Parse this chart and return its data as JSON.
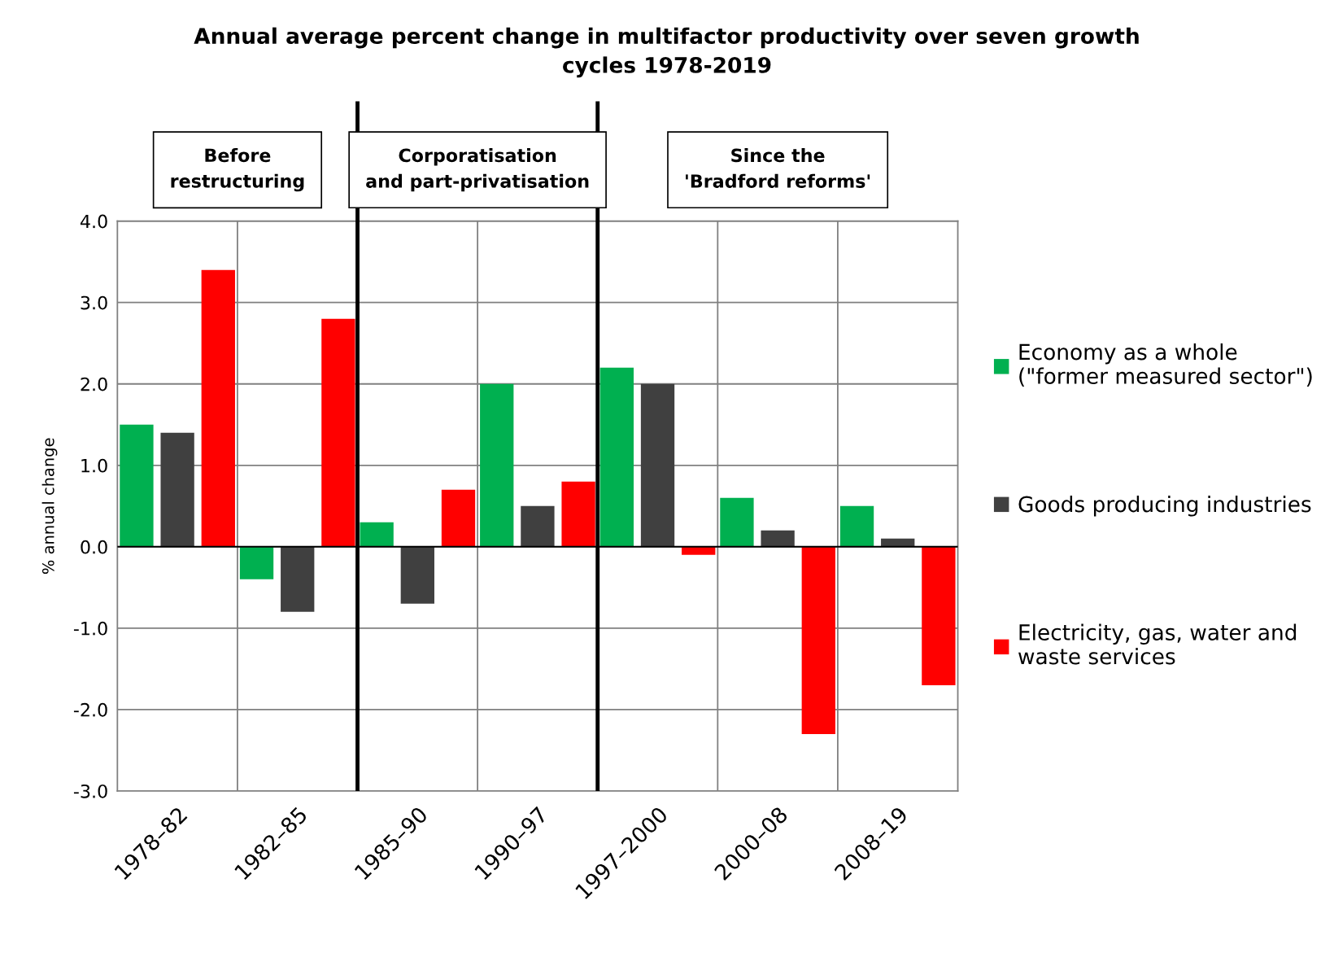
{
  "chart_data": {
    "type": "bar",
    "title": "Annual average percent change in multifactor productivity over seven growth\ncycles 1978-2019",
    "ylabel": "% annual change",
    "categories": [
      "1978–82",
      "1982–85",
      "1985–90",
      "1990–97",
      "1997–2000",
      "2000–08",
      "2008–19"
    ],
    "series": [
      {
        "name": "Economy as a whole\n(\"former measured sector\")",
        "color": "#00b050",
        "values": [
          1.5,
          -0.4,
          0.3,
          2.0,
          2.2,
          0.6,
          0.5
        ]
      },
      {
        "name": "Goods producing industries",
        "color": "#404040",
        "values": [
          1.4,
          -0.8,
          -0.7,
          0.5,
          2.0,
          0.2,
          0.1
        ]
      },
      {
        "name": "Electricity, gas, water and\nwaste services",
        "color": "#ff0000",
        "values": [
          3.4,
          2.8,
          0.7,
          0.8,
          -0.1,
          -2.3,
          -1.7
        ]
      }
    ],
    "ylim": [
      -3,
      4
    ],
    "yticks": [
      {
        "value": -3,
        "label": "-3.0"
      },
      {
        "value": -2,
        "label": "-2.0"
      },
      {
        "value": -1,
        "label": "-1.0"
      },
      {
        "value": 0,
        "label": "0.0"
      },
      {
        "value": 1,
        "label": "1.0"
      },
      {
        "value": 2,
        "label": "2.0"
      },
      {
        "value": 3,
        "label": "3.0"
      },
      {
        "value": 4,
        "label": "4.0"
      }
    ],
    "annotations": [
      "Before\nrestructuring",
      "Corporatisation\nand part-privatisation",
      "Since the\n'Bradford reforms'"
    ],
    "grid": true,
    "legend": "right"
  }
}
